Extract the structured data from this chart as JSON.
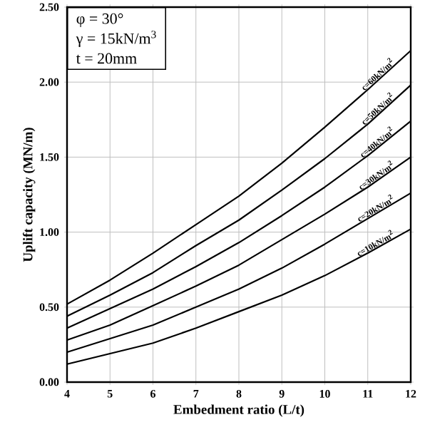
{
  "chart_data": {
    "type": "line",
    "xlabel": "Embedment  ratio (L/t)",
    "ylabel": "Uplift  capacity (MN/m)",
    "x": [
      4,
      5,
      6,
      7,
      8,
      9,
      10,
      11,
      12
    ],
    "series": [
      {
        "name": "c=10kN/m$^{2}$",
        "color": "#000000",
        "values": [
          0.12,
          0.19,
          0.26,
          0.36,
          0.47,
          0.58,
          0.71,
          0.86,
          1.02
        ]
      },
      {
        "name": "c=20kN/m$^{2}$",
        "color": "#000000",
        "values": [
          0.2,
          0.29,
          0.38,
          0.5,
          0.62,
          0.76,
          0.92,
          1.09,
          1.26
        ]
      },
      {
        "name": "c=30kN/m$^{2}$",
        "color": "#000000",
        "values": [
          0.28,
          0.38,
          0.51,
          0.64,
          0.78,
          0.95,
          1.12,
          1.3,
          1.5
        ]
      },
      {
        "name": "c=40kN/m$^{2}$",
        "color": "#000000",
        "values": [
          0.36,
          0.49,
          0.62,
          0.77,
          0.93,
          1.11,
          1.3,
          1.51,
          1.74
        ]
      },
      {
        "name": "c=50kN/m$^{2}$",
        "color": "#000000",
        "values": [
          0.44,
          0.58,
          0.73,
          0.91,
          1.08,
          1.28,
          1.49,
          1.72,
          1.98
        ]
      },
      {
        "name": "c=60kN/m$^{2}$",
        "color": "#000000",
        "values": [
          0.52,
          0.68,
          0.86,
          1.05,
          1.24,
          1.46,
          1.7,
          1.95,
          2.21
        ]
      }
    ],
    "xlim": [
      4,
      12
    ],
    "ylim": [
      0,
      2.5
    ],
    "xticks": [
      4,
      5,
      6,
      7,
      8,
      9,
      10,
      11,
      12
    ],
    "yticks": [
      {
        "value": 0,
        "label": "0.00"
      },
      {
        "value": 0.5,
        "label": "0.50"
      },
      {
        "value": 1,
        "label": "1.00"
      },
      {
        "value": 1.5,
        "label": "1.50"
      },
      {
        "value": 2,
        "label": "2.00"
      },
      {
        "value": 2.5,
        "label": "2.50"
      }
    ],
    "annotations": [
      "φ = 30°",
      "γ = 15kN/m$^{3}$",
      "t = 20mm"
    ],
    "grid": true,
    "marker": "none",
    "line_style": "solid"
  }
}
